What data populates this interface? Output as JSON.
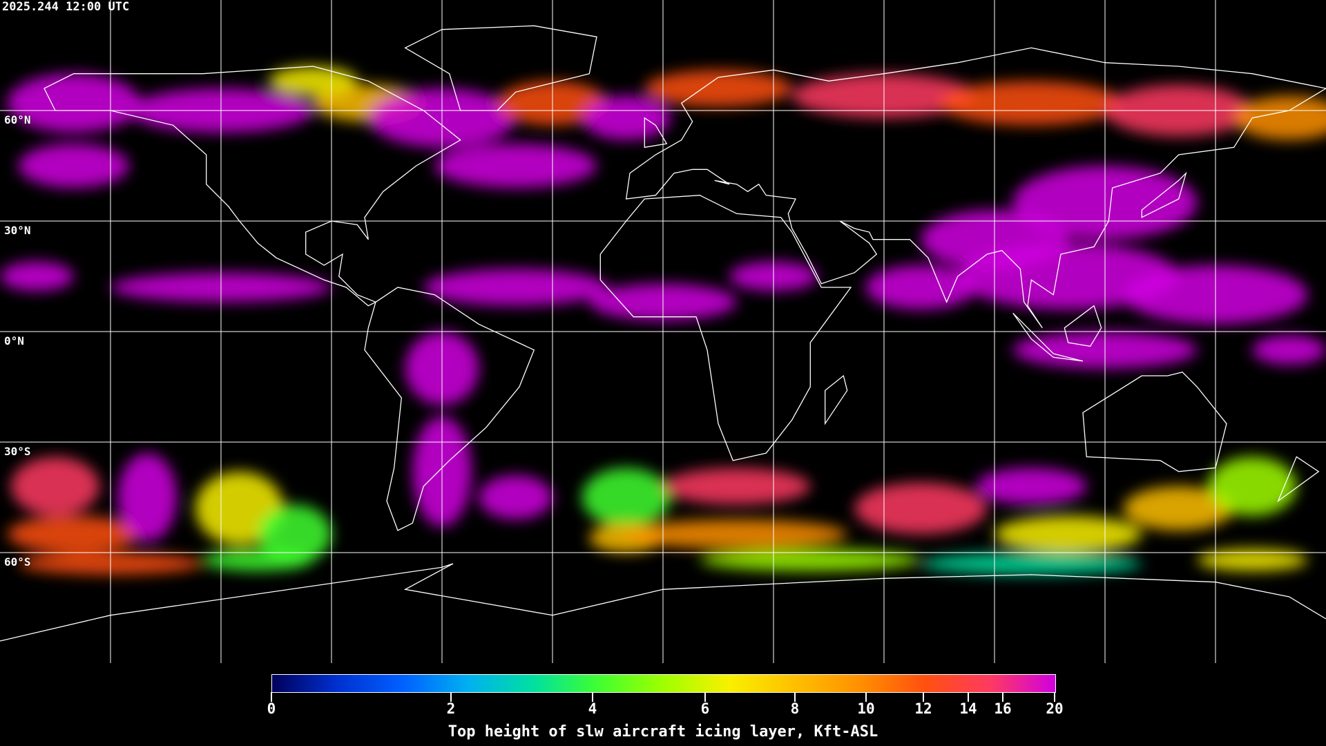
{
  "header": {
    "title": "2025.244 12:00 UTC"
  },
  "map": {
    "projection": "equirectangular",
    "lon_range": [
      -180,
      180
    ],
    "lat_range": [
      -90,
      90
    ],
    "grid_spacing_deg": 30,
    "grid_color": "#ffffff",
    "coastline_color": "#ffffff",
    "background": "#000000"
  },
  "lat_labels": [
    "60°N",
    "30°N",
    "0°N",
    "30°S",
    "60°S"
  ],
  "colorbar": {
    "label": "Top height of slw aircraft icing layer, Kft-ASL",
    "ticks": [
      "0",
      "2",
      "4",
      "6",
      "8",
      "10",
      "12",
      "14",
      "16",
      "20"
    ],
    "colors": [
      "#00005a",
      "#0030d0",
      "#0060ff",
      "#00b0f0",
      "#00e0a0",
      "#40ff30",
      "#a0ff00",
      "#f8f000",
      "#ffc000",
      "#ff9000",
      "#ff5010",
      "#ff3a60",
      "#d000e0"
    ]
  }
}
